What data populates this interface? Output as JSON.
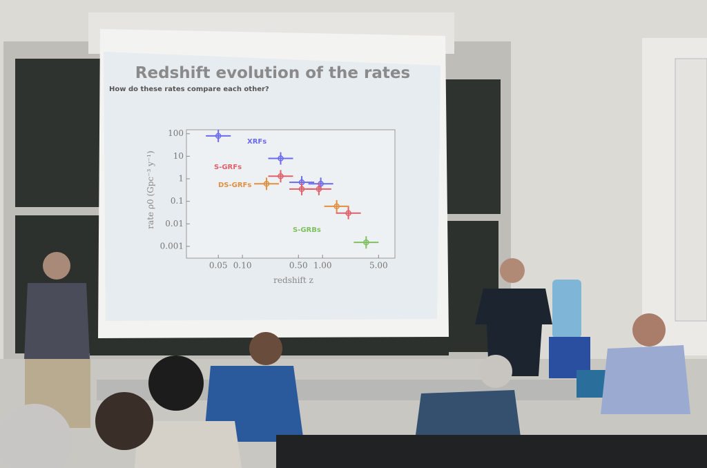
{
  "chart_data": {
    "type": "scatter",
    "title": "Redshift evolution of the rates",
    "subtitle": "How do these rates compare each other?",
    "x_label": "redshift z",
    "y_label": "rate ρ0 (Gpc⁻³ y⁻¹)",
    "log_x": true,
    "log_y": true,
    "xlim": [
      0.02,
      8
    ],
    "ylim": [
      0.0003,
      150
    ],
    "xticks": [
      0.05,
      {
        "value": 0.1,
        "label": "0.10"
      },
      {
        "value": 0.5,
        "label": "0.50"
      },
      {
        "value": 1,
        "label": "1.00"
      },
      {
        "value": 5,
        "label": "5.00"
      }
    ],
    "yticks": [
      100,
      10,
      1,
      0.1,
      0.01,
      0.001
    ],
    "series": [
      {
        "name": "XRFs",
        "color": "#6a6af0",
        "x": [
          0.05,
          0.3,
          0.55,
          0.95
        ],
        "values": [
          80,
          8,
          0.7,
          0.6
        ]
      },
      {
        "name": "S-GRFs",
        "color": "#e0606a",
        "x": [
          0.3,
          0.55,
          0.9,
          2.1
        ],
        "values": [
          1.3,
          0.35,
          0.35,
          0.03
        ]
      },
      {
        "name": "DS-GRFs",
        "color": "#e09040",
        "x": [
          0.2,
          1.5
        ],
        "values": [
          0.6,
          0.06
        ]
      },
      {
        "name": "S-GRBs",
        "color": "#80c060",
        "x": [
          3.5
        ],
        "values": [
          0.0015
        ]
      }
    ]
  }
}
